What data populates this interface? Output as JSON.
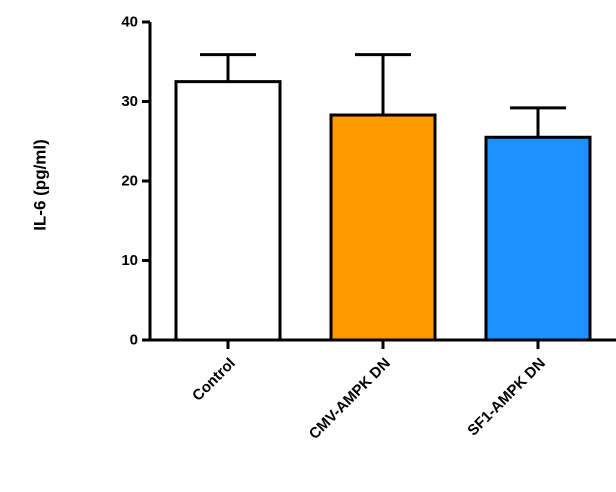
{
  "chart_data": {
    "type": "bar",
    "title": "",
    "xlabel": "",
    "ylabel": "IL-6 (pg/ml)",
    "ylim": [
      0,
      40
    ],
    "yticks": [
      0,
      10,
      20,
      30,
      40
    ],
    "grid": false,
    "categories": [
      "Control",
      "CMV-AMPK DN",
      "SF1-AMPK DN"
    ],
    "values": [
      32.5,
      28.3,
      25.5
    ],
    "errors": [
      3.4,
      7.6,
      3.7
    ],
    "colors": [
      "#ffffff",
      "#ff9900",
      "#1e90ff"
    ]
  }
}
